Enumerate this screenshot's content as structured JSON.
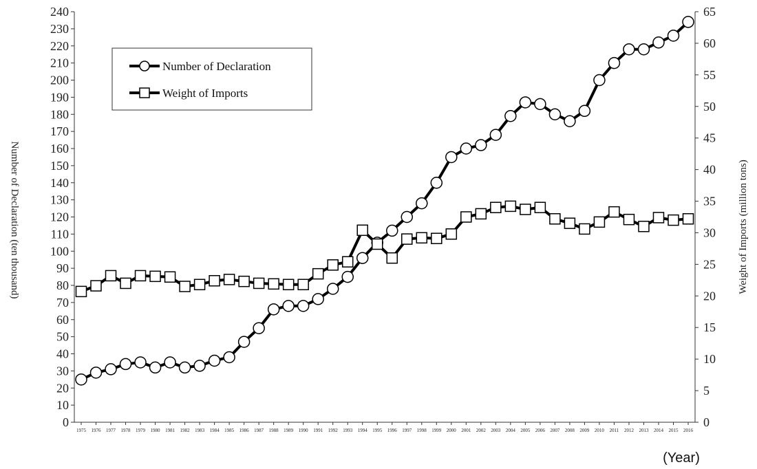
{
  "chart_data": {
    "type": "line",
    "xlabel": "(Year)",
    "ylabel_left": "Number of Declaration (ten thousand)",
    "ylabel_right": "Weight of Imports (million tons)",
    "ylim_left": [
      0,
      240
    ],
    "ylim_right": [
      0,
      65
    ],
    "yticks_left": [
      0,
      10,
      20,
      30,
      40,
      50,
      60,
      70,
      80,
      90,
      100,
      110,
      120,
      130,
      140,
      150,
      160,
      170,
      180,
      190,
      200,
      210,
      220,
      230,
      240
    ],
    "yticks_right": [
      0,
      5,
      10,
      15,
      20,
      25,
      30,
      35,
      40,
      45,
      50,
      55,
      60,
      65
    ],
    "grid": false,
    "legend_position": "top-left",
    "x": [
      "1975",
      "1976",
      "1977",
      "1978",
      "1979",
      "1980",
      "1981",
      "1982",
      "1983",
      "1984",
      "1985",
      "1986",
      "1987",
      "1988",
      "1989",
      "1990",
      "1991",
      "1992",
      "1993",
      "1994",
      "1995",
      "1996",
      "1997",
      "1998",
      "1999",
      "2000",
      "2001",
      "2002",
      "2003",
      "2004",
      "2005",
      "2006",
      "2007",
      "2008",
      "2009",
      "2010",
      "2011",
      "2012",
      "2013",
      "2014",
      "2015",
      "2016"
    ],
    "series": [
      {
        "name": "Number of Declaration",
        "axis": "left",
        "marker": "circle",
        "values": [
          25,
          29,
          31,
          34,
          35,
          32,
          35,
          32,
          33,
          36,
          38,
          47,
          55,
          66,
          68,
          68,
          72,
          78,
          85,
          96,
          105,
          112,
          120,
          128,
          140,
          155,
          160,
          162,
          168,
          179,
          187,
          186,
          180,
          176,
          182,
          200,
          210,
          218,
          218,
          222,
          226,
          234
        ]
      },
      {
        "name": "Weight of Imports",
        "axis": "right",
        "marker": "square",
        "values": [
          20.7,
          21.6,
          23.2,
          22.0,
          23.2,
          23.1,
          23.0,
          21.5,
          21.8,
          22.4,
          22.6,
          22.3,
          22.0,
          21.9,
          21.8,
          21.8,
          23.5,
          24.9,
          25.4,
          30.4,
          28.2,
          26.0,
          29.0,
          29.2,
          29.1,
          29.8,
          32.5,
          33.0,
          34.0,
          34.2,
          33.7,
          34.0,
          32.2,
          31.5,
          30.6,
          31.7,
          33.3,
          32.1,
          31.0,
          32.4,
          32.0,
          32.2
        ]
      }
    ]
  }
}
